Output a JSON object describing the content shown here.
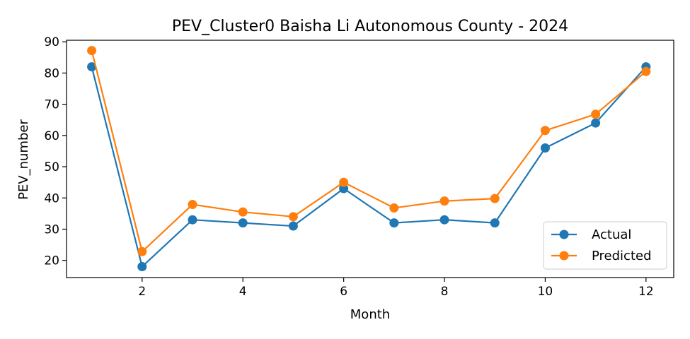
{
  "chart_data": {
    "type": "line",
    "title": "PEV_Cluster0 Baisha Li Autonomous County - 2024",
    "xlabel": "Month",
    "ylabel": "PEV_number",
    "xlim": [
      0.5,
      12.55
    ],
    "ylim": [
      14.5,
      90.5
    ],
    "xticks": [
      2,
      4,
      6,
      8,
      10,
      12
    ],
    "yticks": [
      20,
      30,
      40,
      50,
      60,
      70,
      80,
      90
    ],
    "grid": false,
    "legend_position": "lower-right",
    "x": [
      1,
      2,
      3,
      4,
      5,
      6,
      7,
      8,
      9,
      10,
      11,
      12
    ],
    "series": [
      {
        "name": "Actual",
        "color": "#1f77b4",
        "values": [
          82,
          18,
          33,
          32,
          31,
          43,
          32,
          33,
          32,
          56,
          64,
          82
        ]
      },
      {
        "name": "Predicted",
        "color": "#ff7f0e",
        "values": [
          87.2,
          22.8,
          37.9,
          35.5,
          34,
          45,
          36.8,
          39,
          39.8,
          61.6,
          66.8,
          80.5
        ]
      }
    ]
  }
}
